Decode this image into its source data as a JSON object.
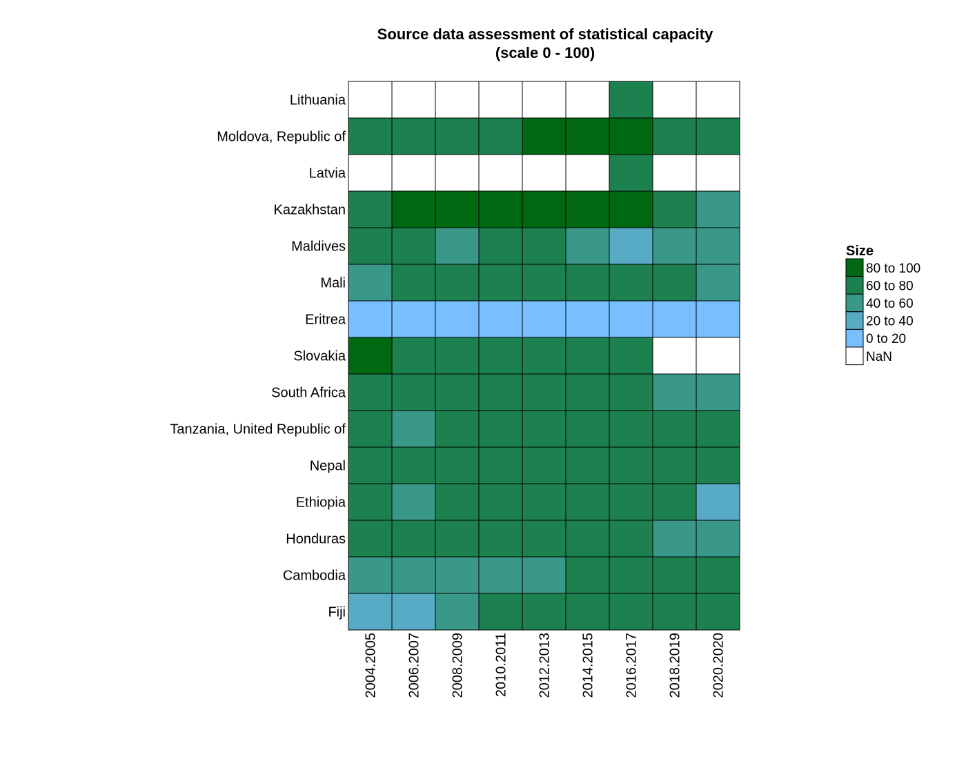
{
  "chart_data": {
    "type": "heatmap",
    "title_lines": [
      "Source data assessment of statistical capacity",
      "(scale 0 - 100)"
    ],
    "xlabel": "",
    "ylabel": "",
    "columns": [
      "2004.2005",
      "2006.2007",
      "2008.2009",
      "2010.2011",
      "2012.2013",
      "2014.2015",
      "2016.2017",
      "2018.2019",
      "2020.2020"
    ],
    "rows": [
      "Lithuania",
      "Moldova, Republic of",
      "Latvia",
      "Kazakhstan",
      "Maldives",
      "Mali",
      "Eritrea",
      "Slovakia",
      "South Africa",
      "Tanzania, United Republic of",
      "Nepal",
      "Ethiopia",
      "Honduras",
      "Cambodia",
      "Fiji"
    ],
    "values": [
      [
        "NaN",
        "NaN",
        "NaN",
        "NaN",
        "NaN",
        "NaN",
        "60 to 80",
        "NaN",
        "NaN"
      ],
      [
        "60 to 80",
        "60 to 80",
        "60 to 80",
        "60 to 80",
        "80 to 100",
        "80 to 100",
        "80 to 100",
        "60 to 80",
        "60 to 80"
      ],
      [
        "NaN",
        "NaN",
        "NaN",
        "NaN",
        "NaN",
        "NaN",
        "60 to 80",
        "NaN",
        "NaN"
      ],
      [
        "60 to 80",
        "80 to 100",
        "80 to 100",
        "80 to 100",
        "80 to 100",
        "80 to 100",
        "80 to 100",
        "60 to 80",
        "40 to 60"
      ],
      [
        "60 to 80",
        "60 to 80",
        "40 to 60",
        "60 to 80",
        "60 to 80",
        "40 to 60",
        "20 to 40",
        "40 to 60",
        "40 to 60"
      ],
      [
        "40 to 60",
        "60 to 80",
        "60 to 80",
        "60 to 80",
        "60 to 80",
        "60 to 80",
        "60 to 80",
        "60 to 80",
        "40 to 60"
      ],
      [
        "0 to 20",
        "0 to 20",
        "0 to 20",
        "0 to 20",
        "0 to 20",
        "0 to 20",
        "0 to 20",
        "0 to 20",
        "0 to 20"
      ],
      [
        "80 to 100",
        "60 to 80",
        "60 to 80",
        "60 to 80",
        "60 to 80",
        "60 to 80",
        "60 to 80",
        "NaN",
        "NaN"
      ],
      [
        "60 to 80",
        "60 to 80",
        "60 to 80",
        "60 to 80",
        "60 to 80",
        "60 to 80",
        "60 to 80",
        "40 to 60",
        "40 to 60"
      ],
      [
        "60 to 80",
        "40 to 60",
        "60 to 80",
        "60 to 80",
        "60 to 80",
        "60 to 80",
        "60 to 80",
        "60 to 80",
        "60 to 80"
      ],
      [
        "60 to 80",
        "60 to 80",
        "60 to 80",
        "60 to 80",
        "60 to 80",
        "60 to 80",
        "60 to 80",
        "60 to 80",
        "60 to 80"
      ],
      [
        "60 to 80",
        "40 to 60",
        "60 to 80",
        "60 to 80",
        "60 to 80",
        "60 to 80",
        "60 to 80",
        "60 to 80",
        "20 to 40"
      ],
      [
        "60 to 80",
        "60 to 80",
        "60 to 80",
        "60 to 80",
        "60 to 80",
        "60 to 80",
        "60 to 80",
        "40 to 60",
        "40 to 60"
      ],
      [
        "40 to 60",
        "40 to 60",
        "40 to 60",
        "40 to 60",
        "40 to 60",
        "60 to 80",
        "60 to 80",
        "60 to 80",
        "60 to 80"
      ],
      [
        "20 to 40",
        "20 to 40",
        "40 to 60",
        "60 to 80",
        "60 to 80",
        "60 to 80",
        "60 to 80",
        "60 to 80",
        "60 to 80"
      ]
    ],
    "legend": {
      "title": "Size",
      "placement": "right",
      "items": [
        {
          "label": "80 to 100",
          "color": "#006810"
        },
        {
          "label": "60 to 80",
          "color": "#1d804f"
        },
        {
          "label": "40 to 60",
          "color": "#3a9888"
        },
        {
          "label": "20 to 40",
          "color": "#58abc4"
        },
        {
          "label": "0 to 20",
          "color": "#77bffe"
        },
        {
          "label": "NaN",
          "color": "#ffffff"
        }
      ]
    },
    "grid": false
  }
}
